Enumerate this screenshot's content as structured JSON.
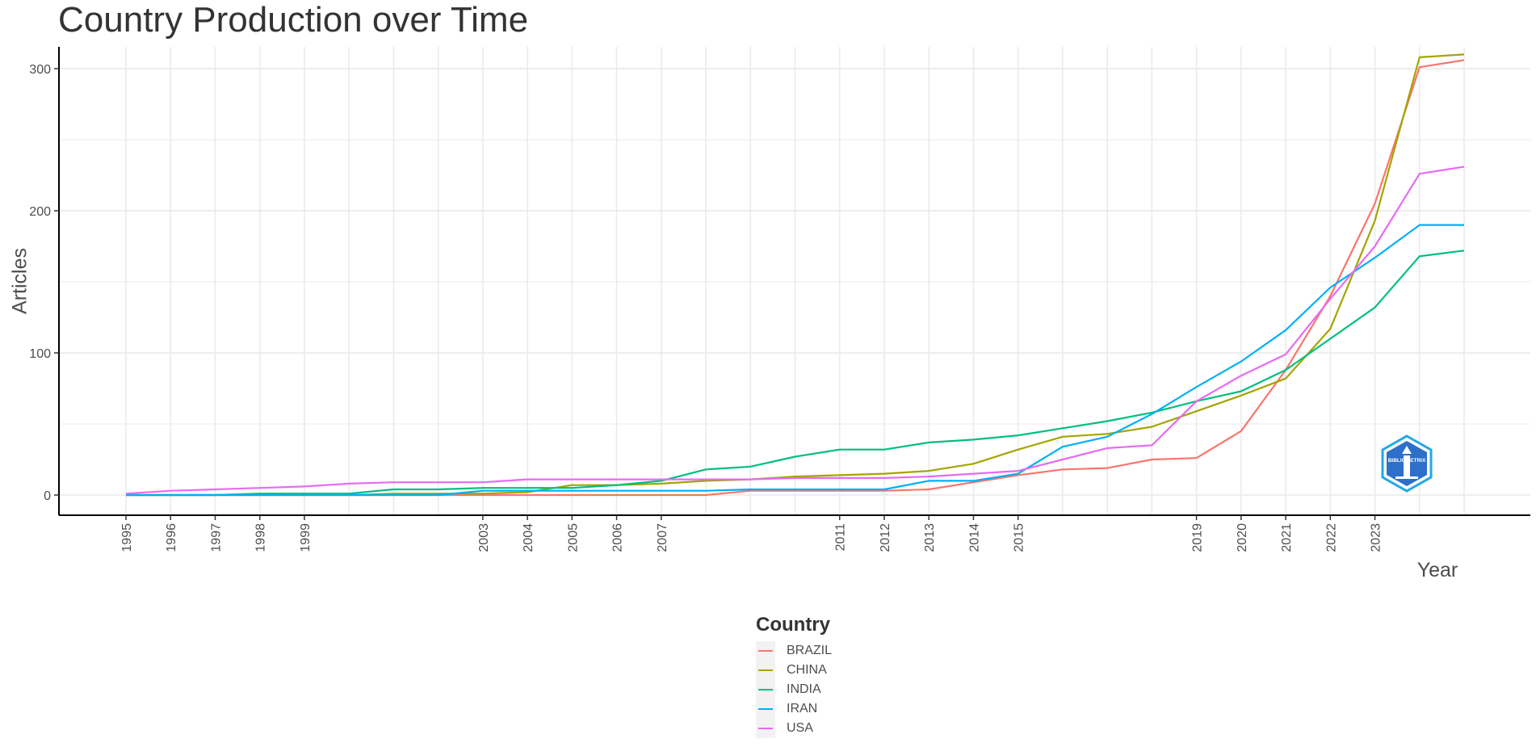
{
  "chart_data": {
    "type": "line",
    "title": "Country Production over Time",
    "xlabel": "Year",
    "ylabel": "Articles",
    "xlim": [
      1995,
      2025
    ],
    "ylim": [
      0,
      310
    ],
    "y_ticks": [
      0,
      100,
      200,
      300
    ],
    "x_tick_labels": [
      "1995",
      "1996",
      "1997",
      "1998",
      "1999",
      "2003",
      "2004",
      "2005",
      "2006",
      "2007",
      "2011",
      "2012",
      "2013",
      "2014",
      "2015",
      "2019",
      "2020",
      "2021",
      "2022",
      "2023"
    ],
    "x": [
      1995,
      1996,
      1997,
      1998,
      1999,
      2000,
      2001,
      2002,
      2003,
      2004,
      2005,
      2006,
      2007,
      2008,
      2009,
      2010,
      2011,
      2012,
      2013,
      2014,
      2015,
      2016,
      2017,
      2018,
      2019,
      2020,
      2021,
      2022,
      2023,
      2024,
      2025
    ],
    "grid": true,
    "legend_title": "Country",
    "legend_position": "bottom",
    "series": [
      {
        "name": "BRAZIL",
        "color": "#F8766D",
        "values": [
          0,
          0,
          0,
          0,
          0,
          0,
          0,
          0,
          0,
          0,
          0,
          0,
          0,
          0,
          3,
          3,
          3,
          3,
          4,
          9,
          14,
          18,
          19,
          25,
          26,
          45,
          88,
          140,
          205,
          301,
          306
        ]
      },
      {
        "name": "CHINA",
        "color": "#A3A500",
        "values": [
          0,
          0,
          0,
          0,
          0,
          0,
          1,
          1,
          1,
          2,
          7,
          7,
          8,
          10,
          11,
          13,
          14,
          15,
          17,
          22,
          32,
          41,
          43,
          48,
          59,
          70,
          82,
          117,
          193,
          308,
          310
        ]
      },
      {
        "name": "INDIA",
        "color": "#00BF7D",
        "values": [
          0,
          0,
          0,
          1,
          1,
          1,
          4,
          4,
          5,
          5,
          5,
          7,
          10,
          18,
          20,
          27,
          32,
          32,
          37,
          39,
          42,
          47,
          52,
          58,
          66,
          73,
          88,
          110,
          132,
          168,
          172
        ]
      },
      {
        "name": "IRAN",
        "color": "#00B0F6",
        "values": [
          0,
          0,
          0,
          0,
          0,
          0,
          0,
          0,
          3,
          3,
          3,
          3,
          3,
          3,
          4,
          4,
          4,
          4,
          10,
          10,
          15,
          34,
          41,
          57,
          76,
          94,
          116,
          146,
          167,
          190,
          190
        ]
      },
      {
        "name": "USA",
        "color": "#E76BF3",
        "values": [
          1,
          3,
          4,
          5,
          6,
          8,
          9,
          9,
          9,
          11,
          11,
          11,
          11,
          11,
          11,
          12,
          12,
          12,
          13,
          15,
          17,
          25,
          33,
          35,
          66,
          84,
          99,
          138,
          175,
          226,
          231
        ]
      }
    ]
  },
  "logo": {
    "text": "BIBLIOMETRIX",
    "color": "#2b7fd4"
  }
}
